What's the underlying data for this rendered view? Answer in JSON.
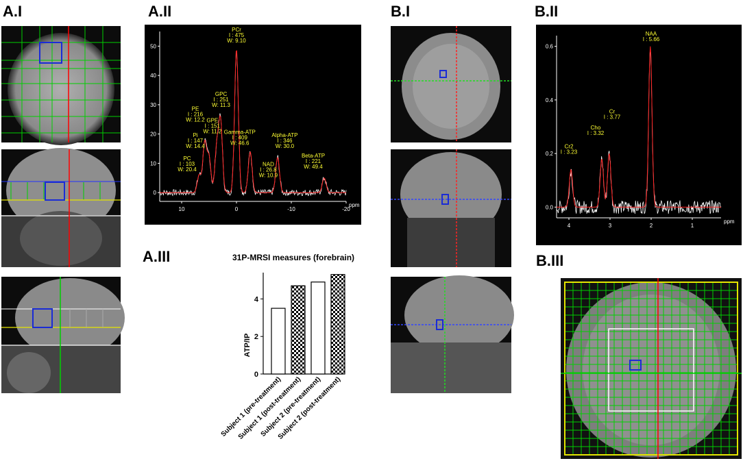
{
  "panel_labels": {
    "a1": "A.I",
    "a2": "A.II",
    "a3": "A.III",
    "b1": "B.I",
    "b2": "B.II",
    "b3": "B.III"
  },
  "colors": {
    "accent_red": "#ff0000",
    "grid_green": "#00d000",
    "voxel_blue": "#1a2bd6",
    "label_yellow": "#ffff33"
  },
  "chart_data": [
    {
      "id": "A.II",
      "type": "line",
      "xunit": "ppm",
      "xticks": [
        "10",
        "0",
        "-10",
        "-20"
      ],
      "yticks": [
        "0",
        "10",
        "20",
        "30",
        "40",
        "50"
      ],
      "xlim": [
        14,
        -20
      ],
      "ylim": [
        -3,
        55
      ],
      "peaks": [
        {
          "ppm": 6.8,
          "height": 6
        },
        {
          "ppm": 5.8,
          "height": 17
        },
        {
          "ppm": 5.0,
          "height": 12
        },
        {
          "ppm": 3.6,
          "height": 15
        },
        {
          "ppm": 2.9,
          "height": 24
        },
        {
          "ppm": 0,
          "height": 49
        },
        {
          "ppm": -2.5,
          "height": 14
        },
        {
          "ppm": -7.5,
          "height": 12
        },
        {
          "ppm": -16.0,
          "height": 5
        }
      ],
      "annotations": [
        {
          "lines": [
            "PCr",
            "I : 475",
            "W: 9.10"
          ],
          "ppm": 0,
          "y": 55
        },
        {
          "lines": [
            "GPC",
            "I : 251",
            "W: 11.3"
          ],
          "ppm": 2.8,
          "y": 33
        },
        {
          "lines": [
            "PE",
            "I : 216",
            "W: 12.2"
          ],
          "ppm": 7.5,
          "y": 28
        },
        {
          "lines": [
            "GPE",
            "I : 151",
            "W: 11.2"
          ],
          "ppm": 4.4,
          "y": 24
        },
        {
          "lines": [
            "Pi",
            "I : 147",
            "W: 14.4"
          ],
          "ppm": 7.5,
          "y": 19
        },
        {
          "lines": [
            "Gamma-ATP",
            "I : 409",
            "W: 46.6"
          ],
          "ppm": -0.6,
          "y": 20
        },
        {
          "lines": [
            "Alpha-ATP",
            "I : 346",
            "W: 30.0"
          ],
          "ppm": -8.8,
          "y": 19
        },
        {
          "lines": [
            "PC",
            "I : 103",
            "W: 20.4"
          ],
          "ppm": 9.0,
          "y": 11
        },
        {
          "lines": [
            "NAD",
            "I : 26.8",
            "W: 10.9"
          ],
          "ppm": -5.8,
          "y": 9
        },
        {
          "lines": [
            "Beta-ATP",
            "I : 221",
            "W: 49.4"
          ],
          "ppm": -14.0,
          "y": 12
        }
      ]
    },
    {
      "id": "A.III",
      "type": "bar",
      "title": "31P-MRSI measures (forebrain)",
      "ylabel": "ATP/IP",
      "yticks": [
        "0",
        "2",
        "4"
      ],
      "ylim": [
        0,
        5.4
      ],
      "categories": [
        "Subject 1 (pre-treatment)",
        "Subject 1 (post-treatment)",
        "Subject 2 (pre-treatment)",
        "Subject 2 (post-treatment)"
      ],
      "values": [
        3.5,
        4.7,
        4.9,
        5.3
      ],
      "patterns": [
        "open",
        "checkered",
        "open",
        "checkered"
      ]
    },
    {
      "id": "B.II",
      "type": "line",
      "xunit": "ppm",
      "xticks": [
        "4",
        "3",
        "2",
        "1"
      ],
      "yticks": [
        "0.0",
        "0.2",
        "0.4",
        "0.6"
      ],
      "xlim": [
        4.3,
        0.3
      ],
      "ylim": [
        -0.04,
        0.64
      ],
      "peaks": [
        {
          "ppm": 3.95,
          "height": 0.14
        },
        {
          "ppm": 3.2,
          "height": 0.18
        },
        {
          "ppm": 3.02,
          "height": 0.2
        },
        {
          "ppm": 2.02,
          "height": 0.6
        }
      ],
      "annotations": [
        {
          "lines": [
            "NAA",
            "I : 5.66"
          ],
          "ppm": 2.0,
          "y": 0.64
        },
        {
          "lines": [
            "Cr",
            "I : 3.77"
          ],
          "ppm": 2.95,
          "y": 0.35
        },
        {
          "lines": [
            "Cho",
            "I : 3.32"
          ],
          "ppm": 3.35,
          "y": 0.29
        },
        {
          "lines": [
            "Cr2",
            "I : 3.23"
          ],
          "ppm": 4.0,
          "y": 0.22
        }
      ]
    }
  ]
}
